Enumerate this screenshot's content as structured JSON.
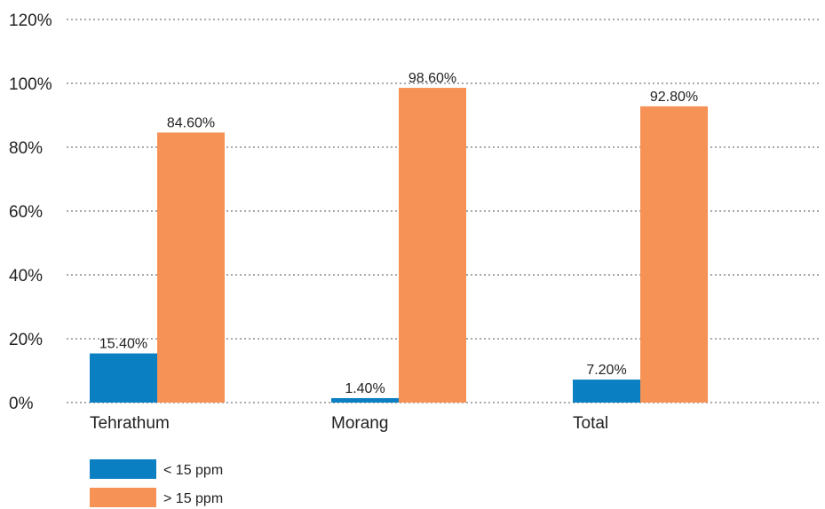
{
  "chart_data": {
    "type": "bar",
    "categories": [
      "Tehrathum",
      "Morang",
      "Total"
    ],
    "series": [
      {
        "name": "< 15 ppm",
        "values": [
          15.4,
          1.4,
          7.2
        ],
        "labels": [
          "15.40%",
          "1.40%",
          "7.20%"
        ],
        "color": "#0a7fc2"
      },
      {
        "name": "> 15 ppm",
        "values": [
          84.6,
          98.6,
          92.8
        ],
        "labels": [
          "84.60%",
          "98.60%",
          "92.80%"
        ],
        "color": "#f79256"
      }
    ],
    "y_ticks": [
      "0%",
      "20%",
      "40%",
      "60%",
      "80%",
      "100%",
      "120%"
    ],
    "ylim": [
      0,
      120
    ],
    "grid": true,
    "legend_position": "bottom-left",
    "title": "",
    "xlabel": "",
    "ylabel": ""
  }
}
